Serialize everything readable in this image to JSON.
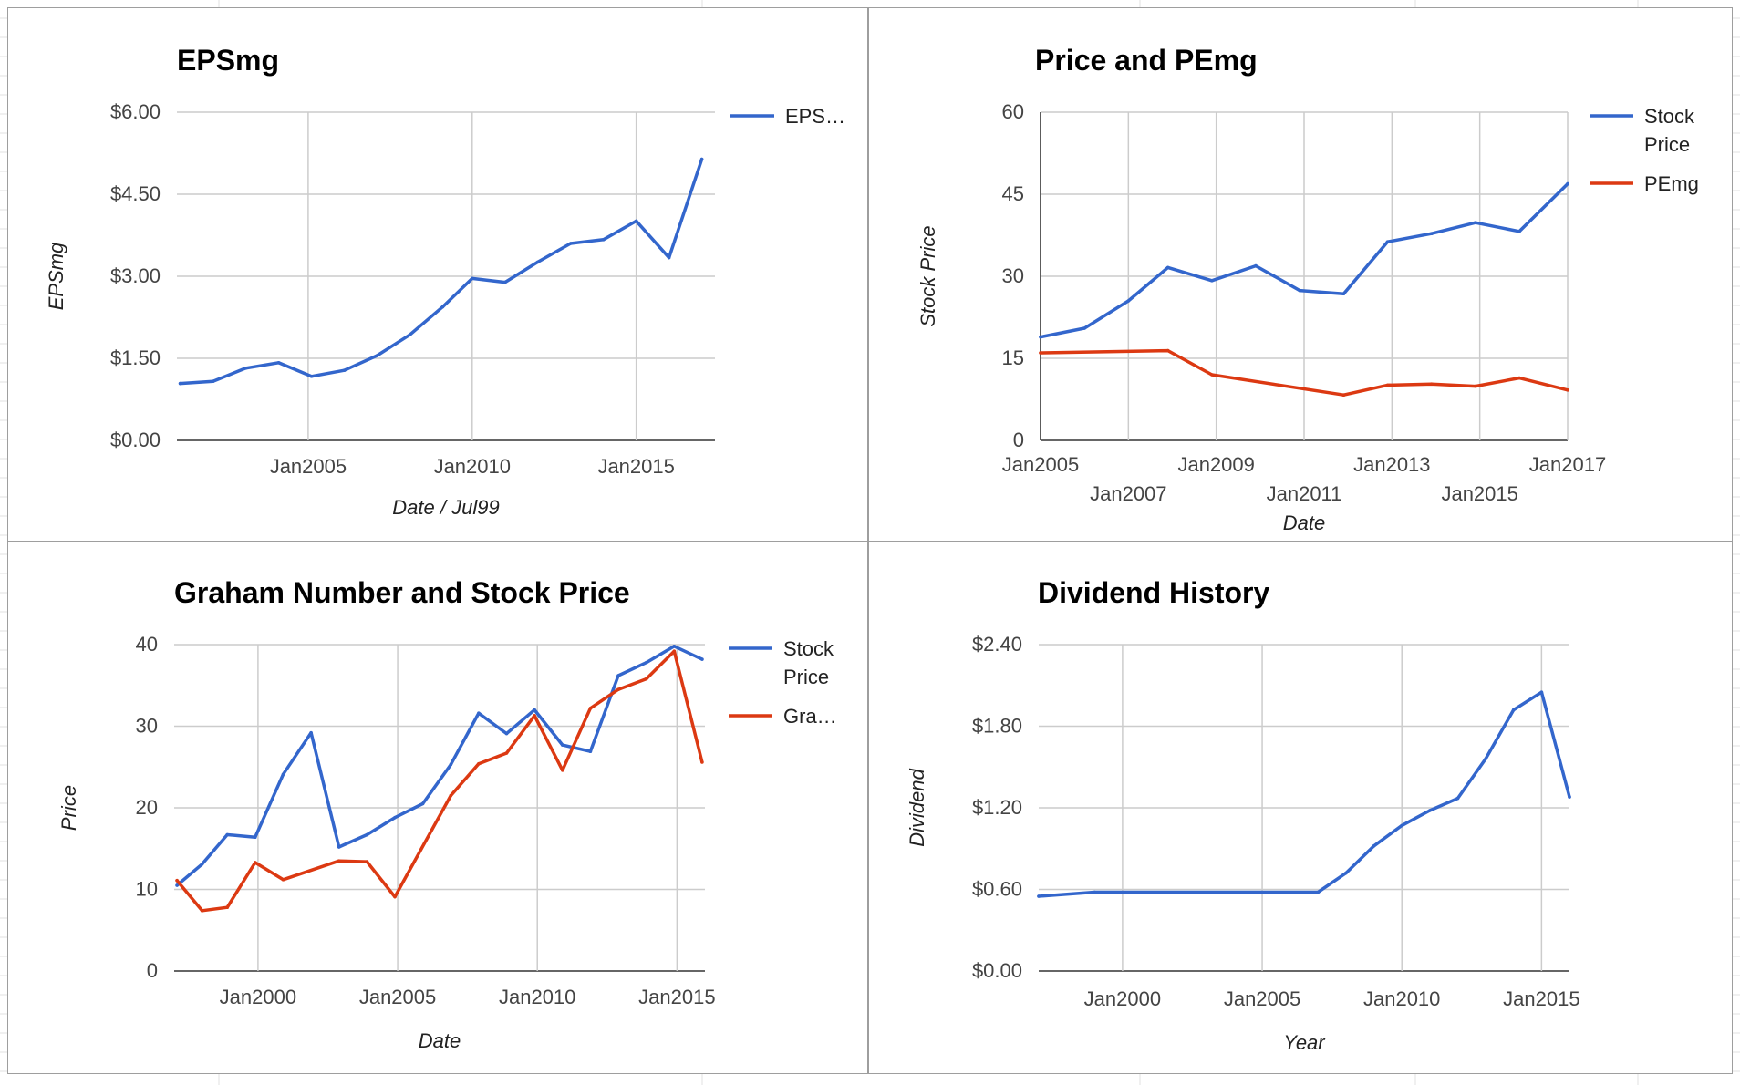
{
  "colors": {
    "blue": "#3366cc",
    "red": "#dc3912",
    "grid": "#cccccc",
    "sheet_line": "#e0e0e0",
    "panel_border": "#9e9e9e"
  },
  "chart_data": [
    {
      "id": "epsmg",
      "type": "line",
      "title": "EPSmg",
      "xlabel": "Date / Jul99",
      "ylabel": "EPSmg",
      "x_type": "year",
      "xlim": [
        2001,
        2017.4
      ],
      "x_ticks": [
        {
          "value": 2005,
          "label": "Jan2005"
        },
        {
          "value": 2010,
          "label": "Jan2010"
        },
        {
          "value": 2015,
          "label": "Jan2015"
        }
      ],
      "ylim": [
        0,
        6
      ],
      "y_ticks": [
        {
          "value": 0,
          "label": "$0.00"
        },
        {
          "value": 1.5,
          "label": "$1.50"
        },
        {
          "value": 3,
          "label": "$3.00"
        },
        {
          "value": 4.5,
          "label": "$4.50"
        },
        {
          "value": 6,
          "label": "$6.00"
        }
      ],
      "grid": true,
      "legend": "right",
      "series": [
        {
          "name": "EPS…",
          "color": "#3366cc",
          "x": [
            2001.1,
            2002.1,
            2003.1,
            2004.1,
            2005.1,
            2006.1,
            2007.1,
            2008.1,
            2009.1,
            2010.0,
            2011.0,
            2012.0,
            2013.0,
            2014.0,
            2015.0,
            2016.0,
            2017.0
          ],
          "y": [
            1.04,
            1.08,
            1.32,
            1.42,
            1.17,
            1.28,
            1.55,
            1.93,
            2.44,
            2.96,
            2.89,
            3.26,
            3.6,
            3.67,
            4.01,
            3.34,
            5.14
          ]
        }
      ]
    },
    {
      "id": "price-pemg",
      "type": "line",
      "title": "Price and PEmg",
      "xlabel": "Date",
      "ylabel": "Stock Price",
      "x_type": "year",
      "xlim": [
        2005,
        2017
      ],
      "x_ticks": [
        {
          "value": 2005,
          "label": "Jan2005",
          "row": 0
        },
        {
          "value": 2007,
          "label": "Jan2007",
          "row": 1
        },
        {
          "value": 2009,
          "label": "Jan2009",
          "row": 0
        },
        {
          "value": 2011,
          "label": "Jan2011",
          "row": 1
        },
        {
          "value": 2013,
          "label": "Jan2013",
          "row": 0
        },
        {
          "value": 2015,
          "label": "Jan2015",
          "row": 1
        },
        {
          "value": 2017,
          "label": "Jan2017",
          "row": 0
        }
      ],
      "ylim": [
        0,
        60
      ],
      "y_ticks": [
        {
          "value": 0,
          "label": "0"
        },
        {
          "value": 15,
          "label": "15"
        },
        {
          "value": 30,
          "label": "30"
        },
        {
          "value": 45,
          "label": "45"
        },
        {
          "value": 60,
          "label": "60"
        }
      ],
      "grid": true,
      "legend": "right",
      "series": [
        {
          "name": "Stock Price",
          "color": "#3366cc",
          "x": [
            2005.0,
            2006.0,
            2007.0,
            2007.9,
            2008.9,
            2009.9,
            2010.9,
            2011.9,
            2012.9,
            2013.9,
            2014.9,
            2015.9,
            2017.0
          ],
          "y": [
            18.9,
            20.5,
            25.5,
            31.6,
            29.2,
            31.9,
            27.4,
            26.8,
            36.3,
            37.8,
            39.8,
            38.2,
            46.9
          ]
        },
        {
          "name": "PEmg",
          "color": "#dc3912",
          "x": [
            2005.0,
            2007.9,
            2008.9,
            2011.9,
            2012.9,
            2013.9,
            2014.9,
            2015.9,
            2017.0
          ],
          "y": [
            16.0,
            16.4,
            12.0,
            8.3,
            10.1,
            10.3,
            9.9,
            11.4,
            9.2
          ]
        }
      ]
    },
    {
      "id": "graham",
      "type": "line",
      "title": "Graham Number and Stock Price",
      "xlabel": "Date",
      "ylabel": "Price",
      "x_type": "year",
      "xlim": [
        1997,
        2016
      ],
      "x_ticks": [
        {
          "value": 2000,
          "label": "Jan2000"
        },
        {
          "value": 2005,
          "label": "Jan2005"
        },
        {
          "value": 2010,
          "label": "Jan2010"
        },
        {
          "value": 2015,
          "label": "Jan2015"
        }
      ],
      "ylim": [
        0,
        40
      ],
      "y_ticks": [
        {
          "value": 0,
          "label": "0"
        },
        {
          "value": 10,
          "label": "10"
        },
        {
          "value": 20,
          "label": "20"
        },
        {
          "value": 30,
          "label": "30"
        },
        {
          "value": 40,
          "label": "40"
        }
      ],
      "grid": true,
      "legend": "right",
      "series": [
        {
          "name": "Stock Price",
          "color": "#3366cc",
          "x": [
            1997.1,
            1998.0,
            1998.9,
            1999.9,
            2000.9,
            2001.9,
            2002.9,
            2003.9,
            2004.9,
            2005.9,
            2006.9,
            2007.9,
            2008.9,
            2009.9,
            2010.9,
            2011.9,
            2012.9,
            2013.9,
            2014.9,
            2015.9
          ],
          "y": [
            10.5,
            13.1,
            16.7,
            16.4,
            24.1,
            29.2,
            15.2,
            16.7,
            18.8,
            20.5,
            25.3,
            31.6,
            29.1,
            32.0,
            27.7,
            26.9,
            36.2,
            37.8,
            39.8,
            38.2
          ]
        },
        {
          "name": "Gra…",
          "color": "#dc3912",
          "x": [
            1997.1,
            1998.0,
            1998.9,
            1999.9,
            2000.9,
            2002.9,
            2003.9,
            2004.9,
            2006.9,
            2007.9,
            2008.9,
            2009.9,
            2010.9,
            2011.9,
            2012.9,
            2013.9,
            2014.9,
            2015.9
          ],
          "y": [
            11.1,
            7.4,
            7.8,
            13.3,
            11.2,
            13.5,
            13.4,
            9.1,
            21.5,
            25.4,
            26.7,
            31.3,
            24.6,
            32.2,
            34.5,
            35.8,
            39.2,
            25.6
          ]
        }
      ]
    },
    {
      "id": "dividend",
      "type": "line",
      "title": "Dividend History",
      "xlabel": "Year",
      "ylabel": "Dividend",
      "x_type": "year",
      "xlim": [
        1997,
        2016
      ],
      "x_ticks": [
        {
          "value": 2000,
          "label": "Jan2000"
        },
        {
          "value": 2005,
          "label": "Jan2005"
        },
        {
          "value": 2010,
          "label": "Jan2010"
        },
        {
          "value": 2015,
          "label": "Jan2015"
        }
      ],
      "ylim": [
        0,
        2.4
      ],
      "y_ticks": [
        {
          "value": 0,
          "label": "$0.00"
        },
        {
          "value": 0.6,
          "label": "$0.60"
        },
        {
          "value": 1.2,
          "label": "$1.20"
        },
        {
          "value": 1.8,
          "label": "$1.80"
        },
        {
          "value": 2.4,
          "label": "$2.40"
        }
      ],
      "grid": true,
      "legend": "none",
      "series": [
        {
          "name": "",
          "color": "#3366cc",
          "x": [
            1997.0,
            1999.0,
            2007.0,
            2008.0,
            2009.0,
            2010.0,
            2011.0,
            2012.0,
            2013.0,
            2014.0,
            2015.0,
            2016.0
          ],
          "y": [
            0.55,
            0.58,
            0.58,
            0.72,
            0.92,
            1.07,
            1.18,
            1.27,
            1.56,
            1.92,
            2.05,
            1.28
          ]
        }
      ]
    }
  ]
}
